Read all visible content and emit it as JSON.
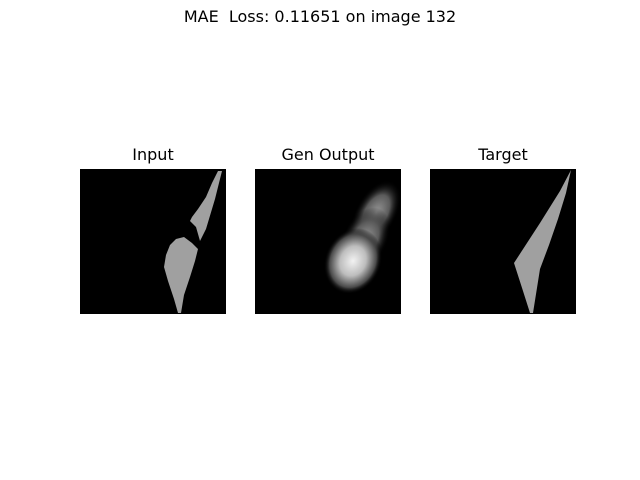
{
  "figure": {
    "suptitle": "MAE  Loss: 0.11651 on image 132",
    "panels": [
      {
        "title": "Input"
      },
      {
        "title": "Gen Output"
      },
      {
        "title": "Target"
      }
    ],
    "colors": {
      "background": "#000000",
      "shape_fill": "#a0a0a0",
      "glow_center": "#f0f0f0"
    }
  }
}
